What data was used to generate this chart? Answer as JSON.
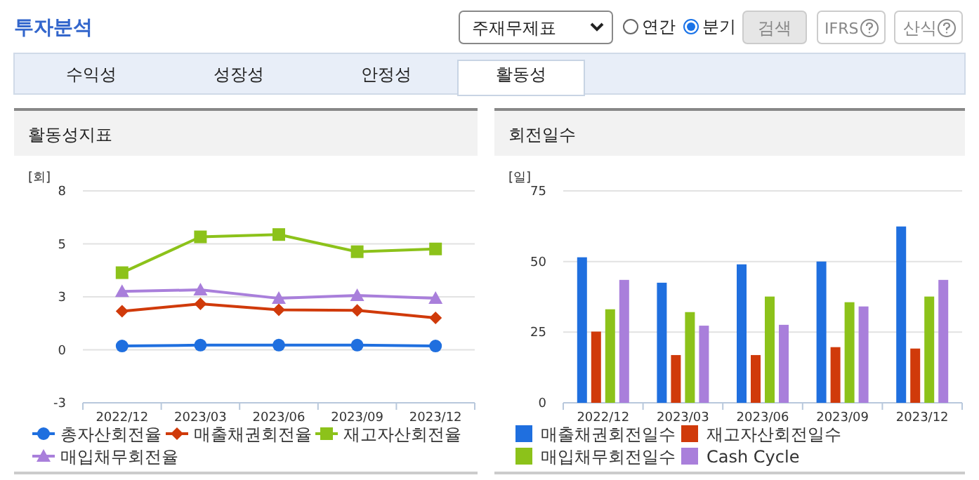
{
  "chart_data": [
    {
      "type": "other",
      "title": "투자분석",
      "annotations": [
        "주재무제표",
        "연간",
        "분기",
        "검색",
        "IFRS",
        "산식",
        "수익성",
        "성장성",
        "안정성",
        "활동성"
      ]
    },
    {
      "type": "line",
      "title": "활동성지표",
      "ylabel": "[회]",
      "categories": [
        "2022/12",
        "2023/03",
        "2023/06",
        "2023/09",
        "2023/12"
      ],
      "ylim": [
        -2.5,
        7.5
      ],
      "yticks": [
        {
          "value": -2.5,
          "label": "-3"
        },
        0,
        {
          "value": 2.5,
          "label": "3"
        },
        5,
        {
          "value": 7.5,
          "label": "8"
        }
      ],
      "grid": "y",
      "legend": "bottom",
      "line_style": "solid",
      "series": [
        {
          "name": "총자산회전율",
          "color": "#1f6fdf",
          "marker": "circle",
          "values": [
            0.18,
            0.22,
            0.22,
            0.22,
            0.18
          ]
        },
        {
          "name": "매출채권회전율",
          "color": "#d03a0a",
          "marker": "diamond",
          "values": [
            1.82,
            2.17,
            1.89,
            1.86,
            1.51
          ]
        },
        {
          "name": "재고자산회전율",
          "color": "#8cc21a",
          "marker": "square",
          "values": [
            3.64,
            5.33,
            5.44,
            4.63,
            4.76
          ]
        },
        {
          "name": "매입채무회전율",
          "color": "#a97fdb",
          "marker": "triangle",
          "values": [
            2.76,
            2.83,
            2.43,
            2.57,
            2.43
          ]
        }
      ]
    },
    {
      "type": "bar",
      "title": "회전일수",
      "ylabel": "[일]",
      "categories": [
        "2022/12",
        "2023/03",
        "2023/06",
        "2023/09",
        "2023/12"
      ],
      "ylim": [
        0,
        75
      ],
      "yticks": [
        0,
        25,
        50,
        75
      ],
      "grid": "y",
      "legend": "bottom",
      "series": [
        {
          "name": "매출채권회전일수",
          "color": "#1f6fdf",
          "values": [
            51.5,
            42.5,
            49,
            50,
            62.4
          ]
        },
        {
          "name": "재고자산회전일수",
          "color": "#d03a0a",
          "values": [
            25.2,
            16.9,
            16.9,
            19.7,
            19.2
          ]
        },
        {
          "name": "매입채무회전일수",
          "color": "#8cc21a",
          "values": [
            33.1,
            32.1,
            37.6,
            35.6,
            37.6
          ]
        },
        {
          "name": "Cash Cycle",
          "color": "#a97fdb",
          "values": [
            43.5,
            27.3,
            27.6,
            34.1,
            43.5
          ]
        }
      ]
    }
  ]
}
